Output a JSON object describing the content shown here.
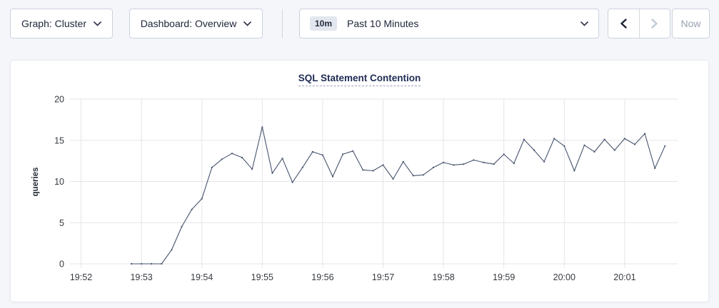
{
  "toolbar": {
    "graph_dropdown": {
      "label": "Graph: Cluster"
    },
    "dashboard_dropdown": {
      "label": "Dashboard: Overview"
    },
    "time_picker": {
      "badge": "10m",
      "label": "Past 10 Minutes"
    },
    "now_button": "Now"
  },
  "chart_data": {
    "type": "line",
    "title": "SQL Statement Contention",
    "xlabel": "",
    "ylabel": "queries",
    "ylim": [
      0,
      20
    ],
    "yticks": [
      0,
      5,
      10,
      15,
      20
    ],
    "xticks": [
      "19:52",
      "19:53",
      "19:54",
      "19:55",
      "19:56",
      "19:57",
      "19:58",
      "19:59",
      "20:00",
      "20:01"
    ],
    "grid": true,
    "legend": false,
    "series": [
      {
        "name": "queries",
        "points": [
          [
            "19:52:50",
            0
          ],
          [
            "19:53:00",
            0
          ],
          [
            "19:53:10",
            0
          ],
          [
            "19:53:20",
            0
          ],
          [
            "19:53:30",
            1.7
          ],
          [
            "19:53:40",
            4.5
          ],
          [
            "19:53:50",
            6.6
          ],
          [
            "19:54:00",
            7.9
          ],
          [
            "19:54:10",
            11.7
          ],
          [
            "19:54:20",
            12.7
          ],
          [
            "19:54:30",
            13.4
          ],
          [
            "19:54:40",
            12.9
          ],
          [
            "19:54:50",
            11.5
          ],
          [
            "19:55:00",
            16.6
          ],
          [
            "19:55:10",
            11.0
          ],
          [
            "19:55:20",
            12.8
          ],
          [
            "19:55:30",
            9.9
          ],
          [
            "19:55:40",
            11.7
          ],
          [
            "19:55:50",
            13.6
          ],
          [
            "19:56:00",
            13.2
          ],
          [
            "19:56:10",
            10.6
          ],
          [
            "19:56:20",
            13.3
          ],
          [
            "19:56:30",
            13.7
          ],
          [
            "19:56:40",
            11.4
          ],
          [
            "19:56:50",
            11.3
          ],
          [
            "19:57:00",
            12.0
          ],
          [
            "19:57:10",
            10.3
          ],
          [
            "19:57:20",
            12.4
          ],
          [
            "19:57:30",
            10.7
          ],
          [
            "19:57:40",
            10.8
          ],
          [
            "19:57:50",
            11.7
          ],
          [
            "19:58:00",
            12.3
          ],
          [
            "19:58:10",
            12.0
          ],
          [
            "19:58:20",
            12.1
          ],
          [
            "19:58:30",
            12.6
          ],
          [
            "19:58:40",
            12.3
          ],
          [
            "19:58:50",
            12.1
          ],
          [
            "19:59:00",
            13.3
          ],
          [
            "19:59:10",
            12.2
          ],
          [
            "19:59:20",
            15.1
          ],
          [
            "19:59:30",
            13.8
          ],
          [
            "19:59:40",
            12.4
          ],
          [
            "19:59:50",
            15.2
          ],
          [
            "20:00:00",
            14.3
          ],
          [
            "20:00:10",
            11.3
          ],
          [
            "20:00:20",
            14.4
          ],
          [
            "20:00:30",
            13.6
          ],
          [
            "20:00:40",
            15.1
          ],
          [
            "20:00:50",
            13.8
          ],
          [
            "20:01:00",
            15.2
          ],
          [
            "20:01:10",
            14.5
          ],
          [
            "20:01:20",
            15.8
          ],
          [
            "20:01:30",
            11.6
          ],
          [
            "20:01:40",
            14.3
          ]
        ]
      }
    ],
    "colors": {
      "line": "#47546e",
      "grid": "#e6e6ea",
      "axis_text": "#36393f",
      "ylabel_text": "#242a35"
    }
  }
}
